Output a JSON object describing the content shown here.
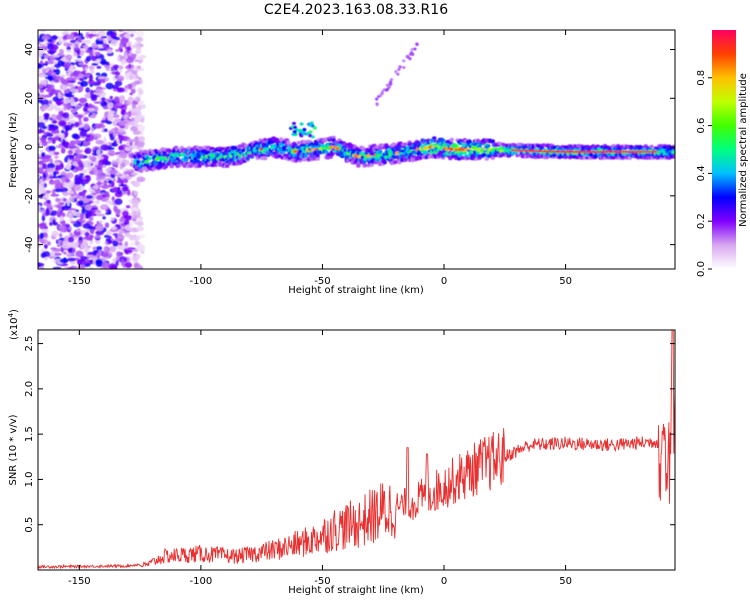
{
  "title": "C2E4.2023.163.08.33.R16",
  "chart_data": [
    {
      "type": "heatmap",
      "xlabel": "Height of straight line (km)",
      "ylabel": "Frequency (Hz)",
      "xlim": [
        -167,
        95
      ],
      "ylim": [
        -50,
        48
      ],
      "xticks": [
        -150,
        -100,
        -50,
        0,
        50
      ],
      "yticks": [
        -40,
        -20,
        0,
        20,
        40
      ],
      "colorbar": {
        "label": "Normalized spectral amplitude",
        "range": [
          0,
          1
        ],
        "ticks": [
          0.0,
          0.2,
          0.4,
          0.6,
          0.8
        ],
        "tick_labels": [
          "0.0",
          "0.2",
          "0.4",
          "0.6",
          "0.8"
        ],
        "colors": [
          "#ffffff",
          "#d8a8f0",
          "#8000ff",
          "#0000ff",
          "#00c0ff",
          "#00ff80",
          "#40ff00",
          "#c0ff00",
          "#ffc000",
          "#ff4000",
          "#ff0060"
        ]
      },
      "ridge_center": [
        [
          -125,
          -6
        ],
        [
          -110,
          -4
        ],
        [
          -90,
          -4
        ],
        [
          -70,
          0
        ],
        [
          -60,
          -2
        ],
        [
          -45,
          0
        ],
        [
          -35,
          -4
        ],
        [
          -25,
          -3
        ],
        [
          -15,
          -2
        ],
        [
          -5,
          0
        ],
        [
          5,
          -1
        ],
        [
          20,
          -1
        ],
        [
          50,
          -2
        ],
        [
          85,
          -2
        ],
        [
          95,
          -2
        ]
      ]
    },
    {
      "type": "line",
      "xlabel": "Height of straight line (km)",
      "ylabel": "SNR (10 * v/v)",
      "exponent_label": "(x10",
      "exponent_power": "4",
      "exponent_close": ")",
      "xlim": [
        -167,
        95
      ],
      "ylim": [
        0,
        26500
      ],
      "xticks": [
        -150,
        -100,
        -50,
        0,
        50
      ],
      "yticks": [
        5000,
        10000,
        15000,
        20000,
        25000
      ],
      "ytick_labels": [
        "0.5",
        "1.0",
        "1.5",
        "2.0",
        "2.5"
      ],
      "color": "#e83030",
      "envelope": [
        [
          -167,
          200
        ],
        [
          -130,
          300
        ],
        [
          -122,
          600
        ],
        [
          -115,
          1500
        ],
        [
          -100,
          1800
        ],
        [
          -85,
          1500
        ],
        [
          -70,
          2200
        ],
        [
          -55,
          3200
        ],
        [
          -45,
          4500
        ],
        [
          -35,
          5200
        ],
        [
          -25,
          6500
        ],
        [
          -15,
          7200
        ],
        [
          -5,
          8500
        ],
        [
          5,
          10000
        ],
        [
          15,
          11500
        ],
        [
          25,
          12500
        ],
        [
          35,
          13800
        ],
        [
          50,
          14000
        ],
        [
          70,
          13800
        ],
        [
          88,
          14200
        ],
        [
          95,
          14000
        ]
      ]
    }
  ]
}
